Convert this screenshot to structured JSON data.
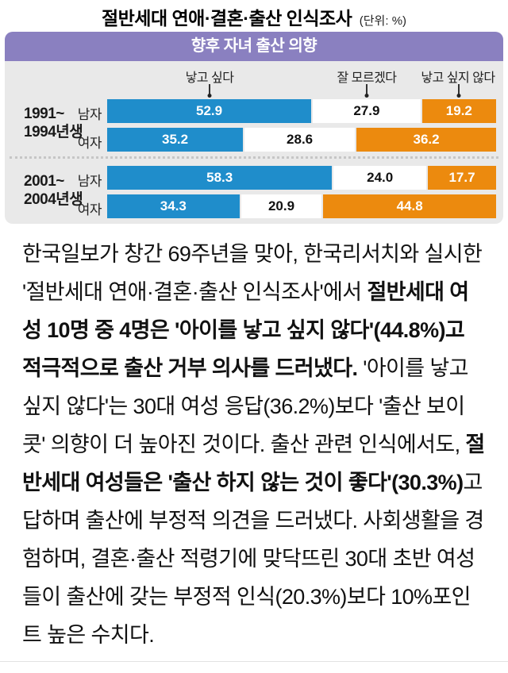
{
  "title": {
    "main": "절반세대 연애·결혼·출산 인식조사",
    "unit": "(단위: %)"
  },
  "chart": {
    "header": "향후 자녀 출산 의향",
    "legend": [
      {
        "label": "낳고 싶다",
        "color": "#1f8dcb",
        "text_color": "#ffffff"
      },
      {
        "label": "잘 모르겠다",
        "color": "#ffffff",
        "text_color": "#111111"
      },
      {
        "label": "낳고 싶지 않다",
        "color": "#ec8a0e",
        "text_color": "#ffffff"
      }
    ],
    "groups": [
      {
        "label_line1": "1991~",
        "label_line2": "1994년생",
        "rows": [
          {
            "label": "남자",
            "display": [
              "52.9",
              "27.9",
              "19.2"
            ]
          },
          {
            "label": "여자",
            "display": [
              "35.2",
              "28.6",
              "36.2"
            ]
          }
        ]
      },
      {
        "label_line1": "2001~",
        "label_line2": "2004년생",
        "rows": [
          {
            "label": "남자",
            "display": [
              "58.3",
              "24.0",
              "17.7"
            ]
          },
          {
            "label": "여자",
            "display": [
              "34.3",
              "20.9",
              "44.8"
            ]
          }
        ]
      }
    ]
  },
  "chart_data": {
    "type": "bar",
    "subtype": "horizontal-stacked",
    "title": "향후 자녀 출산 의향",
    "supertitle": "절반세대 연애·결혼·출산 인식조사",
    "unit": "%",
    "categories": [
      "1991~1994년생 남자",
      "1991~1994년생 여자",
      "2001~2004년생 남자",
      "2001~2004년생 여자"
    ],
    "series": [
      {
        "name": "낳고 싶다",
        "color": "#1f8dcb",
        "values": [
          52.9,
          35.2,
          58.3,
          34.3
        ]
      },
      {
        "name": "잘 모르겠다",
        "color": "#ffffff",
        "values": [
          27.9,
          28.6,
          24.0,
          20.9
        ]
      },
      {
        "name": "낳고 싶지 않다",
        "color": "#ec8a0e",
        "values": [
          19.2,
          36.2,
          17.7,
          44.8
        ]
      }
    ],
    "xlim": [
      0,
      100
    ],
    "legend_position": "top",
    "grid": false
  },
  "article": {
    "runs": [
      {
        "bold": false,
        "text": "한국일보가 창간 69주년을 맞아, 한국리서치와 실시한 '절반세대 연애·결혼·출산 인식조사'에서 "
      },
      {
        "bold": true,
        "text": "절반세대 여성 10명 중 4명은 '아이를 낳고 싶지 않다'(44.8%)고 적극적으로 출산 거부 의사를 드러냈다."
      },
      {
        "bold": false,
        "text": " '아이를 낳고 싶지 않다'는 30대 여성 응답(36.2%)보다 '출산 보이콧' 의향이 더 높아진 것이다. 출산 관련 인식에서도, "
      },
      {
        "bold": true,
        "text": "절반세대 여성들은 '출산 하지 않는 것이 좋다'(30.3%)"
      },
      {
        "bold": false,
        "text": "고 답하며 출산에 부정적 의견을 드러냈다. 사회생활을 경험하며, 결혼·출산 적령기에 맞닥뜨린 30대 초반 여성들이 출산에 갖는 부정적 인식(20.3%)보다 10%포인트 높은 수치다."
      }
    ]
  },
  "colors": {
    "header_purple": "#8a80c0",
    "chart_bg": "#e9e9e9",
    "bar_blue": "#1f8dcb",
    "bar_orange": "#ec8a0e",
    "text": "#111111",
    "separator": "#c6c6c6"
  }
}
